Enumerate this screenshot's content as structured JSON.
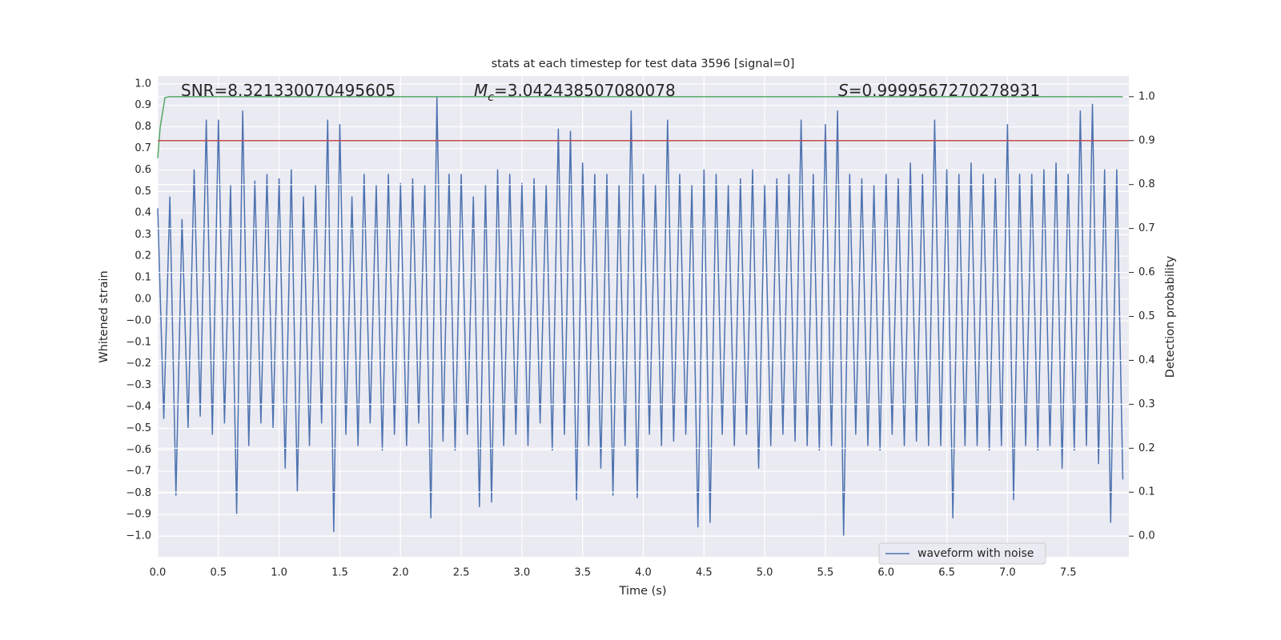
{
  "chart_data": {
    "type": "line",
    "title": "stats at each timestep for test data 3596 [signal=0]",
    "xlabel": "Time (s)",
    "ylabel": "Whitened strain",
    "y2label": "Detection probability",
    "annotations": [
      {
        "text": "SNR=8.321330070495605"
      },
      {
        "symbol": "M",
        "subscript": "c",
        "text": "=3.042438507080078"
      },
      {
        "symbol": "S",
        "text": "=0.9999567270278931"
      }
    ],
    "xlim": [
      0,
      8.0
    ],
    "xticks": [
      {
        "value": 0,
        "label": "0.0"
      },
      0.5,
      {
        "value": 1,
        "label": "1.0"
      },
      1.5,
      {
        "value": 2,
        "label": "2.0"
      },
      2.5,
      {
        "value": 3,
        "label": "3.0"
      },
      3.5,
      {
        "value": 4,
        "label": "4.0"
      },
      4.5,
      {
        "value": 5,
        "label": "5.0"
      },
      5.5,
      {
        "value": 6,
        "label": "6.0"
      },
      6.5,
      {
        "value": 7,
        "label": "7.0"
      },
      7.5
    ],
    "ylim": [
      -1.092,
      1.035
    ],
    "yticks": [
      {
        "value": 1.0,
        "label": "1.0"
      },
      {
        "value": 0.905,
        "label": "0.9"
      },
      {
        "value": 0.81,
        "label": "0.8"
      },
      {
        "value": 0.714,
        "label": "0.7"
      },
      {
        "value": 0.619,
        "label": "0.6"
      },
      {
        "value": 0.524,
        "label": "0.5"
      },
      {
        "value": 0.429,
        "label": "0.4"
      },
      {
        "value": 0.333,
        "label": "0.3"
      },
      {
        "value": 0.238,
        "label": "0.2"
      },
      {
        "value": 0.143,
        "label": "0.1"
      },
      {
        "value": 0.048,
        "label": "0.0"
      },
      {
        "value": -0.048,
        "label": "−0.0"
      },
      {
        "value": -0.143,
        "label": "−0.1"
      },
      {
        "value": -0.238,
        "label": "−0.2"
      },
      {
        "value": -0.333,
        "label": "−0.3"
      },
      {
        "value": -0.429,
        "label": "−0.4"
      },
      {
        "value": -0.524,
        "label": "−0.5"
      },
      {
        "value": -0.619,
        "label": "−0.6"
      },
      {
        "value": -0.714,
        "label": "−0.7"
      },
      {
        "value": -0.81,
        "label": "−0.8"
      },
      {
        "value": -0.905,
        "label": "−0.9"
      },
      {
        "value": -1.0,
        "label": "−1.0"
      }
    ],
    "y2lim": [
      -0.047,
      1.047
    ],
    "y2ticks": [
      {
        "value": 0,
        "label": "0.0"
      },
      0.1,
      0.2,
      0.3,
      0.4,
      0.5,
      0.6,
      0.7,
      0.8,
      0.9,
      {
        "value": 1,
        "label": "1.0"
      }
    ],
    "grid": true,
    "legend_loc": "lower right",
    "series": [
      {
        "name": "waveform with noise",
        "color": "#4c72b0",
        "x": [
          0,
          0.05,
          0.1,
          0.15,
          0.2,
          0.25,
          0.3,
          0.35,
          0.4,
          0.45,
          0.5,
          0.55,
          0.6,
          0.65,
          0.7,
          0.75,
          0.8,
          0.85,
          0.9,
          0.95,
          1,
          1.05,
          1.1,
          1.15,
          1.2,
          1.25,
          1.3,
          1.35,
          1.4,
          1.45,
          1.5,
          1.55,
          1.6,
          1.65,
          1.7,
          1.75,
          1.8,
          1.85,
          1.9,
          1.95,
          2,
          2.05,
          2.1,
          2.15,
          2.2,
          2.25,
          2.3,
          2.35,
          2.4,
          2.45,
          2.5,
          2.55,
          2.6,
          2.65,
          2.7,
          2.75,
          2.8,
          2.85,
          2.9,
          2.95,
          3,
          3.05,
          3.1,
          3.15,
          3.2,
          3.25,
          3.3,
          3.35,
          3.4,
          3.45,
          3.5,
          3.55,
          3.6,
          3.65,
          3.7,
          3.75,
          3.8,
          3.85,
          3.9,
          3.95,
          4,
          4.05,
          4.1,
          4.15,
          4.2,
          4.25,
          4.3,
          4.35,
          4.4,
          4.45,
          4.5,
          4.55,
          4.6,
          4.65,
          4.7,
          4.75,
          4.8,
          4.85,
          4.9,
          4.95,
          5,
          5.05,
          5.1,
          5.15,
          5.2,
          5.25,
          5.3,
          5.35,
          5.4,
          5.45,
          5.5,
          5.55,
          5.6,
          5.65,
          5.7,
          5.75,
          5.8,
          5.85,
          5.9,
          5.95,
          6,
          6.05,
          6.1,
          6.15,
          6.2,
          6.25,
          6.3,
          6.35,
          6.4,
          6.45,
          6.5,
          6.55,
          6.6,
          6.65,
          6.7,
          6.75,
          6.8,
          6.85,
          6.9,
          6.95,
          7,
          7.05,
          7.1,
          7.15,
          7.2,
          7.25,
          7.3,
          7.35,
          7.4,
          7.45,
          7.5,
          7.55,
          7.6,
          7.65,
          7.7,
          7.75,
          7.8,
          7.85,
          7.9,
          7.95
        ],
        "values": [
          0.45,
          -0.48,
          0.5,
          -0.82,
          0.4,
          -0.52,
          0.62,
          -0.47,
          0.84,
          -0.55,
          0.84,
          -0.5,
          0.55,
          -0.9,
          0.88,
          -0.6,
          0.57,
          -0.5,
          0.6,
          -0.52,
          0.58,
          -0.7,
          0.62,
          -0.8,
          0.5,
          -0.6,
          0.55,
          -0.5,
          0.84,
          -0.98,
          0.82,
          -0.55,
          0.5,
          -0.6,
          0.6,
          -0.5,
          0.55,
          -0.62,
          0.6,
          -0.55,
          0.56,
          -0.6,
          0.58,
          -0.5,
          0.55,
          -0.92,
          0.94,
          -0.58,
          0.6,
          -0.62,
          0.6,
          -0.55,
          0.5,
          -0.87,
          0.55,
          -0.85,
          0.62,
          -0.6,
          0.6,
          -0.55,
          0.56,
          -0.6,
          0.58,
          -0.5,
          0.55,
          -0.62,
          0.8,
          -0.55,
          0.79,
          -0.84,
          0.65,
          -0.6,
          0.6,
          -0.7,
          0.6,
          -0.82,
          0.55,
          -0.6,
          0.88,
          -0.83,
          0.6,
          -0.55,
          0.55,
          -0.6,
          0.84,
          -0.58,
          0.6,
          -0.55,
          0.55,
          -0.96,
          0.62,
          -0.94,
          0.6,
          -0.55,
          0.55,
          -0.6,
          0.58,
          -0.55,
          0.62,
          -0.7,
          0.55,
          -0.6,
          0.58,
          -0.55,
          0.6,
          -0.58,
          0.84,
          -0.6,
          0.6,
          -0.62,
          0.82,
          -0.6,
          0.88,
          -1.0,
          0.6,
          -0.55,
          0.58,
          -0.6,
          0.55,
          -0.62,
          0.6,
          -0.55,
          0.58,
          -0.6,
          0.65,
          -0.58,
          0.6,
          -0.6,
          0.84,
          -0.6,
          0.62,
          -0.92,
          0.6,
          -0.6,
          0.65,
          -0.6,
          0.6,
          -0.62,
          0.58,
          -0.6,
          0.82,
          -0.84,
          0.6,
          -0.6,
          0.6,
          -0.62,
          0.62,
          -0.6,
          0.65,
          -0.7,
          0.6,
          -0.62,
          0.88,
          -0.6,
          0.91,
          -0.68,
          0.62,
          -0.94,
          0.62,
          -0.75
        ]
      },
      {
        "color": "#55a868",
        "axis": "y2",
        "x": [
          0,
          0.02,
          0.06,
          0.1,
          7.95
        ],
        "values": [
          0.86,
          0.93,
          0.998,
          1.0,
          1.0
        ]
      },
      {
        "color": "#c44e52",
        "axis": "y2",
        "x": [
          0,
          8.0
        ],
        "values": [
          0.9,
          0.9
        ]
      }
    ]
  }
}
